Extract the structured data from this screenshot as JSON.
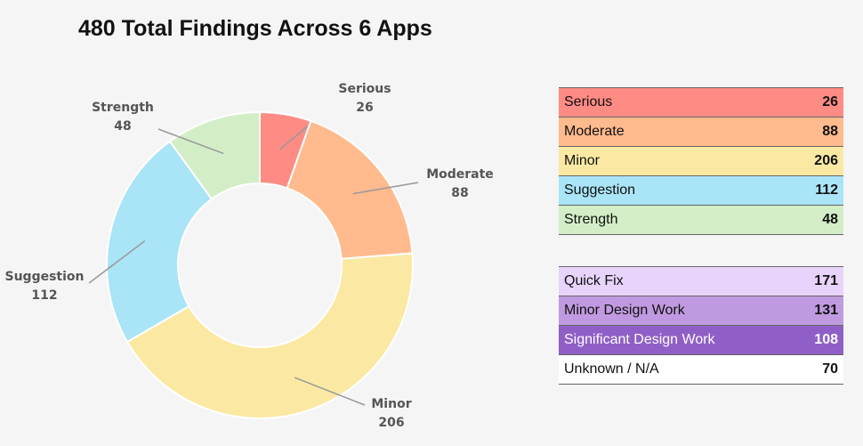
{
  "title": "480 Total Findings Across 6 Apps",
  "chart_data": {
    "type": "pie",
    "categories": [
      "Serious",
      "Moderate",
      "Minor",
      "Suggestion",
      "Strength"
    ],
    "values": [
      26,
      88,
      206,
      112,
      48
    ],
    "colors": [
      "#ff8b85",
      "#ffba8d",
      "#fbe9a3",
      "#a9e4f7",
      "#d3eec7"
    ],
    "legend": "none"
  },
  "severity_table": [
    {
      "label": "Serious",
      "value": "26",
      "color": "#ff8b85"
    },
    {
      "label": "Moderate",
      "value": "88",
      "color": "#ffba8d"
    },
    {
      "label": "Minor",
      "value": "206",
      "color": "#fbe9a3"
    },
    {
      "label": "Suggestion",
      "value": "112",
      "color": "#a9e4f7"
    },
    {
      "label": "Strength",
      "value": "48",
      "color": "#d3eec7"
    }
  ],
  "effort_table": [
    {
      "label": "Quick Fix",
      "value": "171",
      "color": "#e8d3fb"
    },
    {
      "label": "Minor Design Work",
      "value": "131",
      "color": "#c09ae0"
    },
    {
      "label": "Significant Design Work",
      "value": "108",
      "color": "#8f5fc7",
      "text_color": "#ffffff"
    },
    {
      "label": "Unknown / N/A",
      "value": "70",
      "color": "#ffffff"
    }
  ]
}
